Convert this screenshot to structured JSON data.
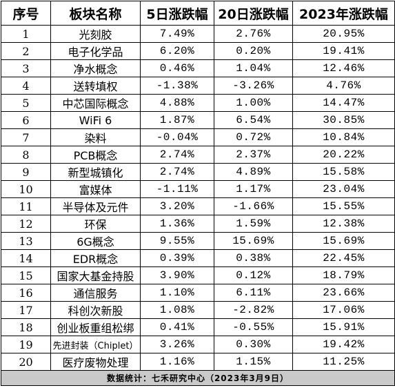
{
  "table": {
    "headers": [
      "序号",
      "板块名称",
      "5日涨跌幅",
      "20日涨跌幅",
      "2023年涨跌幅"
    ],
    "rows": [
      [
        "1",
        "光刻胶",
        "7.49%",
        "2.76%",
        "20.95%"
      ],
      [
        "2",
        "电子化学品",
        "6.20%",
        "0.20%",
        "19.41%"
      ],
      [
        "3",
        "净水概念",
        "0.46%",
        "1.04%",
        "12.46%"
      ],
      [
        "4",
        "送转填权",
        "-1.38%",
        "-3.26%",
        "4.76%"
      ],
      [
        "5",
        "中芯国际概念",
        "4.88%",
        "1.00%",
        "14.47%"
      ],
      [
        "6",
        "WiFi 6",
        "1.87%",
        "6.54%",
        "30.85%"
      ],
      [
        "7",
        "染料",
        "-0.04%",
        "0.72%",
        "10.84%"
      ],
      [
        "8",
        "PCB概念",
        "2.74%",
        "2.37%",
        "20.22%"
      ],
      [
        "9",
        "新型城镇化",
        "2.74%",
        "4.89%",
        "15.58%"
      ],
      [
        "10",
        "富媒体",
        "-1.11%",
        "1.17%",
        "23.04%"
      ],
      [
        "11",
        "半导体及元件",
        "3.20%",
        "-1.66%",
        "15.55%"
      ],
      [
        "12",
        "环保",
        "1.36%",
        "1.59%",
        "12.38%"
      ],
      [
        "13",
        "6G概念",
        "9.55%",
        "15.69%",
        "15.69%"
      ],
      [
        "14",
        "EDR概念",
        "0.39%",
        "0.38%",
        "22.45%"
      ],
      [
        "15",
        "国家大基金持股",
        "3.90%",
        "0.12%",
        "18.79%"
      ],
      [
        "16",
        "通信服务",
        "1.10%",
        "6.11%",
        "23.66%"
      ],
      [
        "17",
        "科创次新股",
        "1.08%",
        "-2.82%",
        "17.06%"
      ],
      [
        "18",
        "创业板重组松绑",
        "0.41%",
        "-0.55%",
        "15.91%"
      ],
      [
        "19",
        "先进封装（Chiplet）",
        "3.26%",
        "0.30%",
        "19.42%"
      ],
      [
        "20",
        "医疗废物处理",
        "1.16%",
        "1.15%",
        "11.25%"
      ]
    ],
    "footer": "数据统计：七禾研究中心（2023年3月9日）"
  }
}
